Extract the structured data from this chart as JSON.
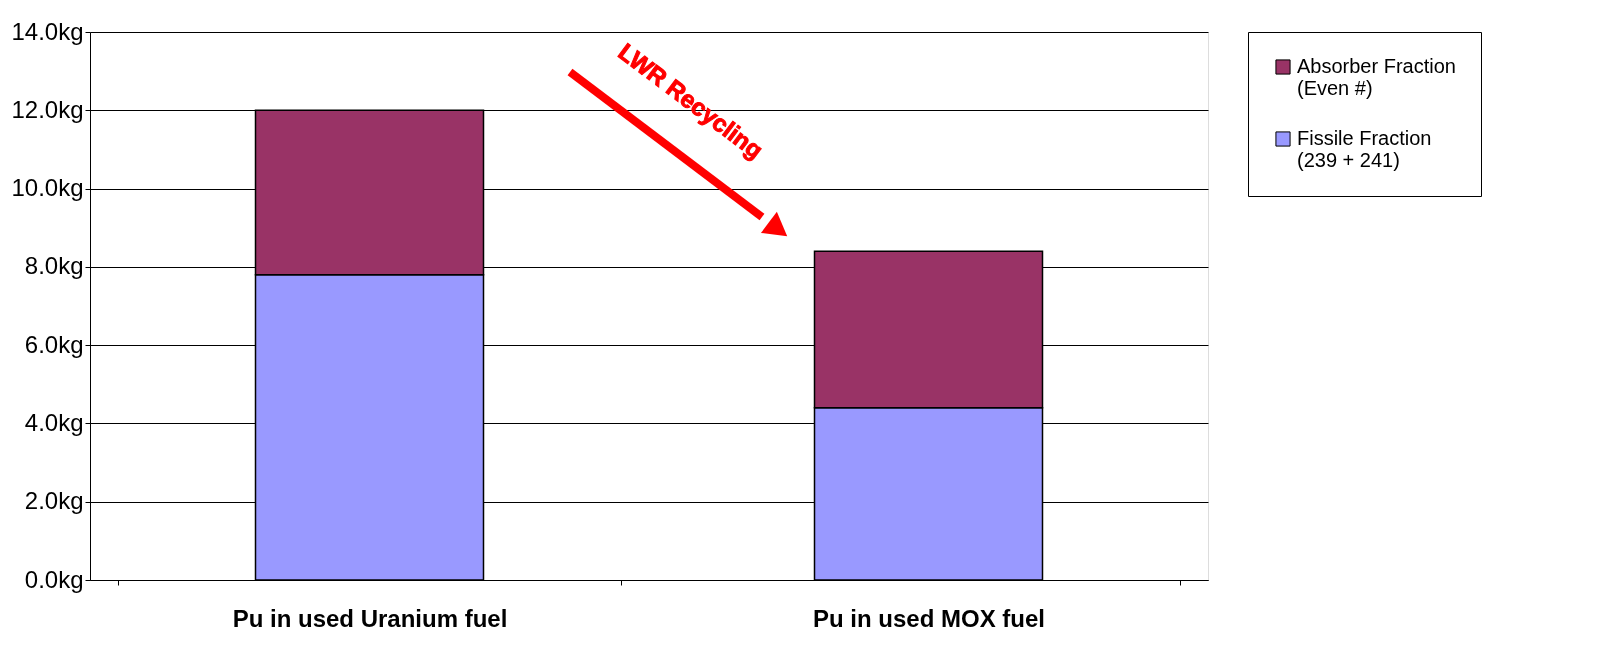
{
  "chart_data": {
    "type": "bar",
    "stacked": true,
    "categories": [
      "Pu in used Uranium fuel",
      "Pu in used MOX fuel"
    ],
    "series": [
      {
        "name": "Fissile Fraction\n(239 + 241)",
        "color": "#9999ff",
        "values": [
          7.8,
          4.4
        ]
      },
      {
        "name": "Absorber Fraction\n(Even #)",
        "color": "#993366",
        "values": [
          4.2,
          4.0
        ]
      }
    ],
    "ylim": [
      0,
      14
    ],
    "yticks": [
      {
        "value": 0,
        "label": "0.0kg"
      },
      {
        "value": 2,
        "label": "2.0kg"
      },
      {
        "value": 4,
        "label": "4.0kg"
      },
      {
        "value": 6,
        "label": "6.0kg"
      },
      {
        "value": 8,
        "label": "8.0kg"
      },
      {
        "value": 10,
        "label": "10.0kg"
      },
      {
        "value": 12,
        "label": "12.0kg"
      },
      {
        "value": 14,
        "label": "14.0kg"
      }
    ],
    "grid": "y",
    "legend": "right",
    "annotations": [
      "LWR Recycling"
    ]
  }
}
